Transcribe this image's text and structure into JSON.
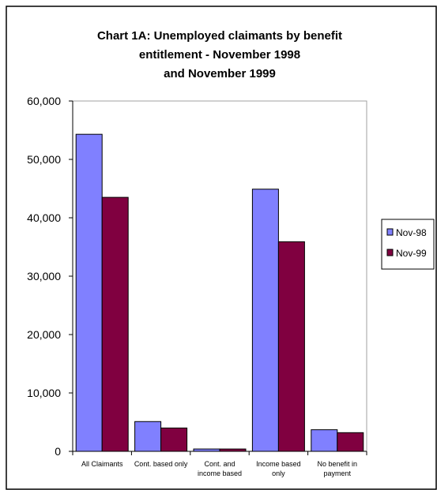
{
  "chart_data": {
    "type": "bar",
    "title_lines": [
      "Chart 1A:  Unemployed claimants by benefit",
      "entitlement - November 1998",
      "and November 1999"
    ],
    "categories": [
      [
        "All Claimants"
      ],
      [
        "Cont. based only"
      ],
      [
        "Cont. and",
        "income based"
      ],
      [
        "Income  based",
        "only"
      ],
      [
        "No benefit in",
        "payment"
      ]
    ],
    "series": [
      {
        "name": "Nov-98",
        "color": "#8080ff",
        "values": [
          54300,
          5100,
          400,
          44900,
          3700
        ]
      },
      {
        "name": "Nov-99",
        "color": "#800040",
        "values": [
          43500,
          4000,
          400,
          35900,
          3200
        ]
      }
    ],
    "ylim": [
      0,
      60000
    ],
    "yticks": [
      0,
      10000,
      20000,
      30000,
      40000,
      50000,
      60000
    ],
    "ytick_labels": [
      "0",
      "10,000",
      "20,000",
      "30,000",
      "40,000",
      "50,000",
      "60,000"
    ],
    "grid": false,
    "legend_position": "right"
  }
}
